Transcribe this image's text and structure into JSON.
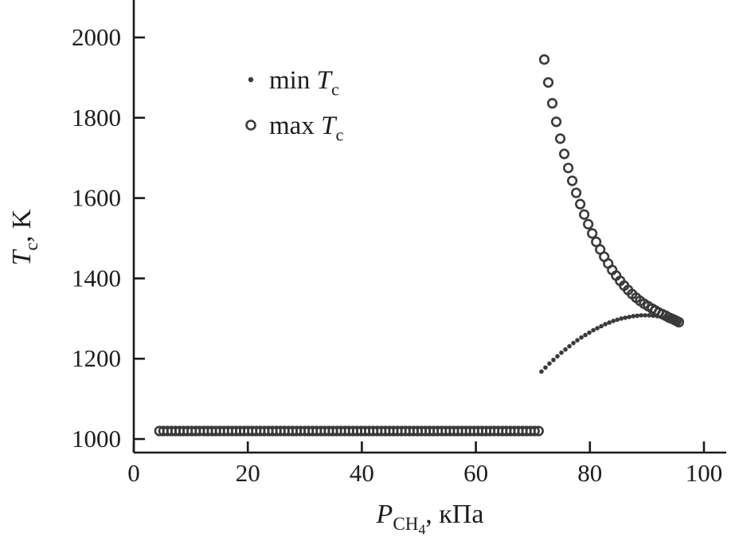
{
  "page": {
    "background": "#ffffff"
  },
  "chart_data": {
    "type": "scatter",
    "title": "",
    "xlabel": "P_CH4, кПа",
    "ylabel": "T_c, K",
    "xlabel_parts": [
      {
        "t": "P",
        "italic": true
      },
      {
        "t": "CH",
        "sub": true
      },
      {
        "t": "4",
        "subsub": true
      },
      {
        "t": ", кПа"
      }
    ],
    "ylabel_parts": [
      {
        "t": "T",
        "italic": true
      },
      {
        "t": "c",
        "sub": true
      },
      {
        "t": ", K"
      }
    ],
    "xlim": [
      0,
      104
    ],
    "ylim": [
      1000,
      2090
    ],
    "x_ticks": [
      0,
      20,
      40,
      60,
      80,
      100
    ],
    "y_ticks": [
      1000,
      1200,
      1400,
      1600,
      1800,
      2000
    ],
    "grid": false,
    "legend_position": "upper-left-inside",
    "axis_color": "#1a1a1a",
    "text_color": "#1c1c1c",
    "marker_color": "#3a3a3a",
    "legend": {
      "entries": [
        {
          "marker": "dot",
          "label": "min T_c",
          "parts": [
            {
              "t": "min "
            },
            {
              "t": "T",
              "italic": true
            },
            {
              "t": "c",
              "sub": true
            }
          ]
        },
        {
          "marker": "circle",
          "label": "max T_c",
          "parts": [
            {
              "t": "max "
            },
            {
              "t": "T",
              "italic": true
            },
            {
              "t": "c",
              "sub": true
            }
          ]
        }
      ]
    },
    "series": [
      {
        "id": "max-tc",
        "name": "max T_c",
        "marker": "circle",
        "plateau": {
          "x_start": 4.5,
          "x_end": 71,
          "y": 1020,
          "count": 95
        },
        "points": [
          [
            72,
            1945
          ],
          [
            72.7,
            1888
          ],
          [
            73.4,
            1836
          ],
          [
            74.1,
            1790
          ],
          [
            74.8,
            1748
          ],
          [
            75.5,
            1710
          ],
          [
            76.2,
            1675
          ],
          [
            76.9,
            1643
          ],
          [
            77.6,
            1613
          ],
          [
            78.3,
            1585
          ],
          [
            79,
            1559
          ],
          [
            79.7,
            1535
          ],
          [
            80.4,
            1512
          ],
          [
            81.1,
            1491
          ],
          [
            81.8,
            1472
          ],
          [
            82.5,
            1454
          ],
          [
            83.2,
            1437
          ],
          [
            83.9,
            1421
          ],
          [
            84.6,
            1407
          ],
          [
            85.3,
            1394
          ],
          [
            86,
            1382
          ],
          [
            86.7,
            1371
          ],
          [
            87.4,
            1361
          ],
          [
            88.1,
            1352
          ],
          [
            88.8,
            1344
          ],
          [
            89.5,
            1337
          ],
          [
            90.2,
            1331
          ],
          [
            90.9,
            1325
          ],
          [
            91.5,
            1320
          ],
          [
            92.1,
            1315
          ],
          [
            92.7,
            1311
          ],
          [
            93.3,
            1307
          ],
          [
            93.8,
            1303
          ],
          [
            94.3,
            1300
          ],
          [
            94.8,
            1297
          ],
          [
            95.2,
            1294
          ],
          [
            95.6,
            1291
          ]
        ]
      },
      {
        "id": "min-tc",
        "name": "min T_c",
        "marker": "dot",
        "points": [
          [
            71.5,
            1168
          ],
          [
            72.2,
            1178
          ],
          [
            72.9,
            1188
          ],
          [
            73.6,
            1197
          ],
          [
            74.3,
            1206
          ],
          [
            75,
            1215
          ],
          [
            75.7,
            1223
          ],
          [
            76.4,
            1231
          ],
          [
            77.1,
            1239
          ],
          [
            77.8,
            1246
          ],
          [
            78.5,
            1253
          ],
          [
            79.2,
            1259
          ],
          [
            79.9,
            1265
          ],
          [
            80.6,
            1271
          ],
          [
            81.3,
            1276
          ],
          [
            82,
            1281
          ],
          [
            82.7,
            1286
          ],
          [
            83.4,
            1290
          ],
          [
            84.1,
            1294
          ],
          [
            84.8,
            1297
          ],
          [
            85.5,
            1300
          ],
          [
            86.2,
            1302
          ],
          [
            86.9,
            1304
          ],
          [
            87.6,
            1306
          ],
          [
            88.3,
            1307
          ],
          [
            89,
            1308
          ],
          [
            89.7,
            1308
          ],
          [
            90.4,
            1308
          ],
          [
            91.1,
            1307
          ],
          [
            91.8,
            1306
          ],
          [
            92.5,
            1304
          ],
          [
            93.2,
            1302
          ],
          [
            93.9,
            1299
          ],
          [
            94.5,
            1296
          ],
          [
            95.1,
            1293
          ],
          [
            95.6,
            1290
          ]
        ]
      }
    ]
  }
}
